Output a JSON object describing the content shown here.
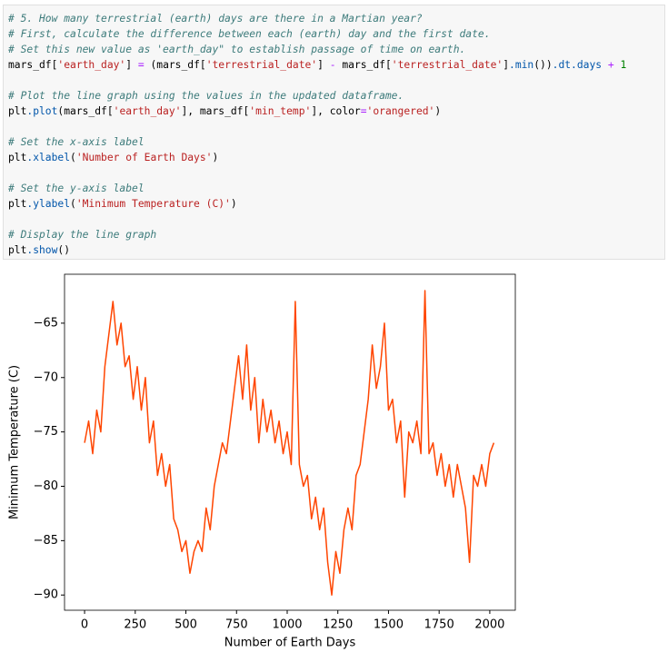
{
  "code": {
    "blocks": [
      [
        "# 5. How many terrestrial (earth) days are there in a Martian year?",
        "# First, calculate the difference between each (earth) day and the first date.",
        "# Set this new value as 'earth_day\" to establish passage of time on earth.",
        "mars_df['earth_day'] = (mars_df['terrestrial_date'] - mars_df['terrestrial_date'].min()).dt.days + 1"
      ],
      [
        "# Plot the line graph using the values in the updated dataframe.",
        "plt.plot(mars_df['earth_day'], mars_df['min_temp'], color='orangered')"
      ],
      [
        "# Set the x-axis label",
        "plt.xlabel('Number of Earth Days')"
      ],
      [
        "# Set the y-axis label",
        "plt.ylabel('Minimum Temperature (C)')"
      ],
      [
        "# Display the line graph",
        "plt.show()"
      ]
    ]
  },
  "chart_data": {
    "type": "line",
    "xlabel": "Number of Earth Days",
    "ylabel": "Minimum Temperature (C)",
    "xlim": [
      -99,
      2126
    ],
    "ylim": [
      -91.4,
      -60.5
    ],
    "xticks": [
      0,
      250,
      500,
      750,
      1000,
      1250,
      1500,
      1750,
      2000
    ],
    "yticks": [
      {
        "value": -90,
        "label": "−90"
      },
      {
        "value": -85,
        "label": "−85"
      },
      {
        "value": -80,
        "label": "−80"
      },
      {
        "value": -75,
        "label": "−75"
      },
      {
        "value": -70,
        "label": "−70"
      },
      {
        "value": -65,
        "label": "−65"
      }
    ],
    "x": [
      0,
      20,
      40,
      60,
      80,
      100,
      120,
      140,
      160,
      180,
      200,
      220,
      240,
      260,
      280,
      300,
      320,
      340,
      360,
      380,
      400,
      420,
      440,
      460,
      480,
      500,
      520,
      540,
      560,
      580,
      600,
      620,
      640,
      660,
      680,
      700,
      720,
      740,
      760,
      780,
      800,
      820,
      840,
      860,
      880,
      900,
      920,
      940,
      960,
      980,
      1000,
      1020,
      1040,
      1060,
      1080,
      1100,
      1120,
      1140,
      1160,
      1180,
      1200,
      1220,
      1240,
      1260,
      1280,
      1300,
      1320,
      1340,
      1360,
      1380,
      1400,
      1420,
      1440,
      1460,
      1480,
      1500,
      1520,
      1540,
      1560,
      1580,
      1600,
      1620,
      1640,
      1660,
      1680,
      1700,
      1720,
      1740,
      1760,
      1780,
      1800,
      1820,
      1840,
      1860,
      1880,
      1900,
      1920,
      1940,
      1960,
      1980,
      2000,
      2020
    ],
    "series": [
      {
        "color": "#ff4500",
        "values": [
          -76,
          -74,
          -77,
          -73,
          -75,
          -69,
          -66,
          -63,
          -67,
          -65,
          -69,
          -68,
          -72,
          -69,
          -73,
          -70,
          -76,
          -74,
          -79,
          -77,
          -80,
          -78,
          -83,
          -84,
          -86,
          -85,
          -88,
          -86,
          -85,
          -86,
          -82,
          -84,
          -80,
          -78,
          -76,
          -77,
          -74,
          -71,
          -68,
          -72,
          -67,
          -73,
          -70,
          -76,
          -72,
          -75,
          -73,
          -76,
          -74,
          -77,
          -75,
          -78,
          -63,
          -78,
          -80,
          -79,
          -83,
          -81,
          -84,
          -82,
          -87,
          -90,
          -86,
          -88,
          -84,
          -82,
          -84,
          -79,
          -78,
          -75,
          -72,
          -67,
          -71,
          -69,
          -65,
          -73,
          -72,
          -76,
          -74,
          -81,
          -75,
          -76,
          -74,
          -77,
          -62,
          -77,
          -76,
          -79,
          -77,
          -80,
          -78,
          -81,
          -78,
          -80,
          -82,
          -87,
          -79,
          -80,
          -78,
          -80,
          -77,
          -76
        ]
      }
    ]
  }
}
